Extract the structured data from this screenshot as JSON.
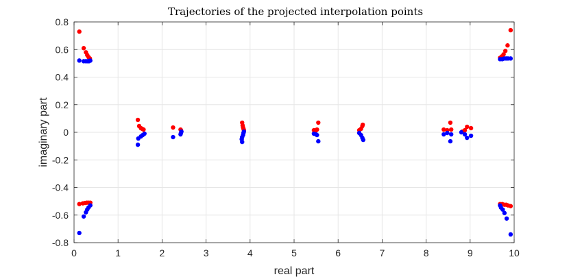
{
  "chart_data": {
    "type": "scatter",
    "title": "Trajectories of the projected interpolation points",
    "xlabel": "real part",
    "ylabel": "imaginary part",
    "xlim": [
      0,
      10
    ],
    "ylim": [
      -0.8,
      0.8
    ],
    "xticks": [
      "0",
      "1",
      "2",
      "3",
      "4",
      "5",
      "6",
      "7",
      "8",
      "9",
      "10"
    ],
    "yticks": [
      "-0.8",
      "-0.6",
      "-0.4",
      "-0.2",
      "0",
      "0.2",
      "0.4",
      "0.6",
      "0.8"
    ],
    "grid": true,
    "series": [
      {
        "color": "#ff0000",
        "points": [
          [
            0.12,
            0.73
          ],
          [
            0.22,
            0.61
          ],
          [
            0.27,
            0.58
          ],
          [
            0.3,
            0.56
          ],
          [
            0.33,
            0.545
          ],
          [
            0.36,
            0.535
          ],
          [
            0.12,
            -0.52
          ],
          [
            0.2,
            -0.515
          ],
          [
            0.25,
            -0.512
          ],
          [
            0.29,
            -0.51
          ],
          [
            0.33,
            -0.51
          ],
          [
            0.37,
            -0.51
          ],
          [
            1.45,
            0.09
          ],
          [
            1.48,
            0.045
          ],
          [
            1.52,
            0.03
          ],
          [
            1.55,
            0.025
          ],
          [
            1.58,
            0.02
          ],
          [
            2.25,
            0.035
          ],
          [
            2.42,
            0.02
          ],
          [
            2.43,
            0.015
          ],
          [
            3.82,
            0.07
          ],
          [
            3.83,
            0.05
          ],
          [
            3.84,
            0.035
          ],
          [
            3.85,
            0.025
          ],
          [
            3.86,
            0.015
          ],
          [
            5.45,
            0.015
          ],
          [
            5.5,
            0.015
          ],
          [
            5.52,
            0.02
          ],
          [
            5.55,
            0.07
          ],
          [
            6.48,
            0.015
          ],
          [
            6.52,
            0.025
          ],
          [
            6.55,
            0.045
          ],
          [
            6.56,
            0.055
          ],
          [
            8.4,
            0.02
          ],
          [
            8.48,
            0.015
          ],
          [
            8.55,
            0.07
          ],
          [
            8.57,
            0.02
          ],
          [
            8.82,
            0.005
          ],
          [
            8.88,
            0.015
          ],
          [
            8.93,
            0.04
          ],
          [
            9.02,
            0.03
          ],
          [
            9.68,
            0.54
          ],
          [
            9.72,
            0.55
          ],
          [
            9.76,
            0.565
          ],
          [
            9.8,
            0.59
          ],
          [
            9.85,
            0.63
          ],
          [
            9.92,
            0.74
          ],
          [
            9.68,
            -0.52
          ],
          [
            9.73,
            -0.52
          ],
          [
            9.78,
            -0.525
          ],
          [
            9.82,
            -0.525
          ],
          [
            9.86,
            -0.53
          ],
          [
            9.92,
            -0.535
          ]
        ]
      },
      {
        "color": "#0000ff",
        "points": [
          [
            0.12,
            0.52
          ],
          [
            0.22,
            0.515
          ],
          [
            0.27,
            0.515
          ],
          [
            0.31,
            0.515
          ],
          [
            0.34,
            0.515
          ],
          [
            0.37,
            0.52
          ],
          [
            0.12,
            -0.73
          ],
          [
            0.22,
            -0.61
          ],
          [
            0.27,
            -0.58
          ],
          [
            0.3,
            -0.56
          ],
          [
            0.33,
            -0.545
          ],
          [
            0.37,
            -0.53
          ],
          [
            1.45,
            -0.09
          ],
          [
            1.46,
            -0.045
          ],
          [
            1.52,
            -0.03
          ],
          [
            1.56,
            -0.02
          ],
          [
            1.6,
            -0.01
          ],
          [
            2.25,
            -0.035
          ],
          [
            2.42,
            -0.015
          ],
          [
            2.43,
            -0.005
          ],
          [
            2.44,
            0.005
          ],
          [
            3.82,
            -0.07
          ],
          [
            3.81,
            -0.05
          ],
          [
            3.82,
            -0.035
          ],
          [
            3.84,
            -0.02
          ],
          [
            3.85,
            -0.005
          ],
          [
            3.86,
            0.005
          ],
          [
            5.45,
            -0.01
          ],
          [
            5.5,
            -0.015
          ],
          [
            5.52,
            -0.02
          ],
          [
            5.55,
            -0.065
          ],
          [
            6.48,
            -0.005
          ],
          [
            6.52,
            -0.02
          ],
          [
            6.55,
            -0.04
          ],
          [
            6.57,
            -0.055
          ],
          [
            8.4,
            -0.015
          ],
          [
            8.48,
            -0.005
          ],
          [
            8.55,
            -0.065
          ],
          [
            8.57,
            -0.015
          ],
          [
            8.8,
            0.0
          ],
          [
            8.88,
            -0.015
          ],
          [
            8.93,
            -0.04
          ],
          [
            9.02,
            -0.025
          ],
          [
            9.68,
            0.53
          ],
          [
            9.73,
            0.53
          ],
          [
            9.78,
            0.535
          ],
          [
            9.82,
            0.535
          ],
          [
            9.86,
            0.535
          ],
          [
            9.92,
            0.535
          ],
          [
            9.68,
            -0.53
          ],
          [
            9.7,
            -0.545
          ],
          [
            9.74,
            -0.56
          ],
          [
            9.78,
            -0.585
          ],
          [
            9.83,
            -0.625
          ],
          [
            9.92,
            -0.74
          ]
        ]
      }
    ]
  }
}
